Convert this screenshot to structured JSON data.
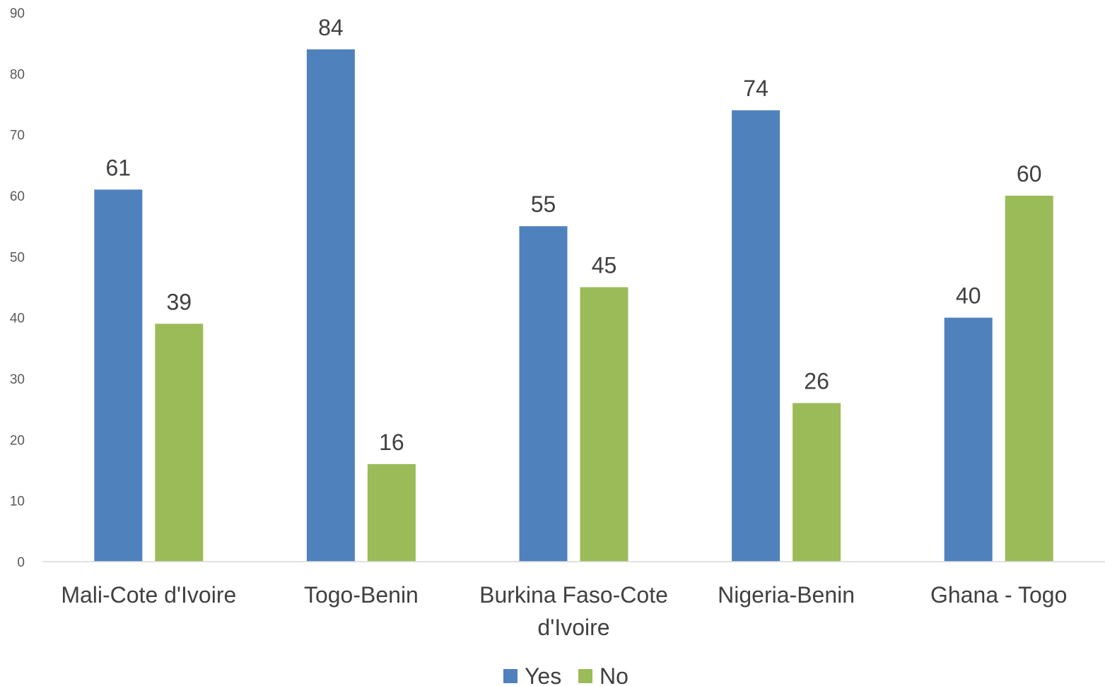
{
  "chart_data": {
    "type": "bar",
    "categories": [
      [
        "Mali-Cote d'Ivoire"
      ],
      [
        "Togo-Benin"
      ],
      [
        "Burkina Faso-Cote",
        "d'Ivoire"
      ],
      [
        "Nigeria-Benin"
      ],
      [
        "Ghana - Togo"
      ]
    ],
    "series": [
      {
        "name": "Yes",
        "color": "#4F81BD",
        "values": [
          61,
          84,
          55,
          74,
          40
        ]
      },
      {
        "name": "No",
        "color": "#9BBB59",
        "values": [
          39,
          16,
          45,
          26,
          60
        ]
      }
    ],
    "data_labels": {
      "Yes": [
        "61",
        "84",
        "55",
        "74",
        "40"
      ],
      "No": [
        "39",
        "16",
        "45",
        "26",
        "60"
      ]
    },
    "yticks": [
      "0",
      "10",
      "20",
      "30",
      "40",
      "50",
      "60",
      "70",
      "80",
      "90"
    ],
    "ylim": [
      0,
      90
    ],
    "grid": false,
    "legend": "bottom-center",
    "title": "",
    "xlabel": "",
    "ylabel": ""
  }
}
